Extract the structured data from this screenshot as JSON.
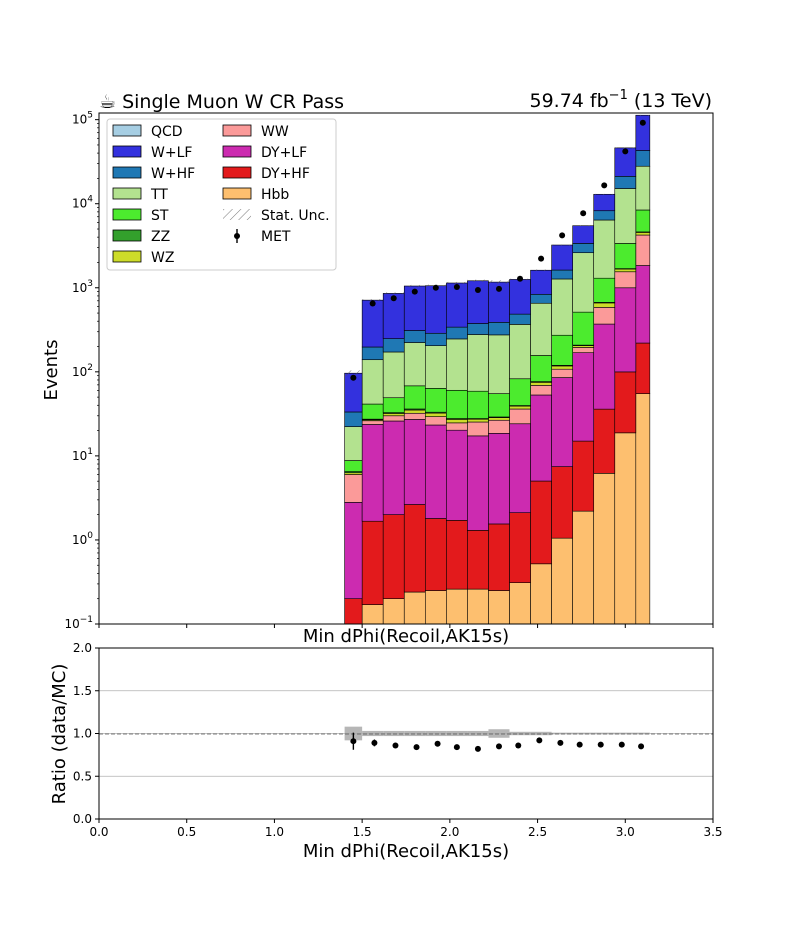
{
  "title_left": "☕ Single Muon W CR Pass",
  "title_right_main": "59.74 fb",
  "title_right_exp": "−1",
  "title_right_tail": " (13 TeV)",
  "chart_data": [
    {
      "type": "bar",
      "stacked": true,
      "log_scale": true,
      "ylabel": "Events",
      "xlabel": "Min dPhi(Recoil,AK15s)",
      "ylim": [
        0.1,
        120000
      ],
      "xlim": [
        1.44,
        3.14
      ],
      "bin_edges": [
        1.4,
        1.5,
        1.62,
        1.74,
        1.86,
        1.98,
        2.1,
        2.22,
        2.34,
        2.46,
        2.58,
        2.7,
        2.82,
        2.94,
        3.06,
        3.14
      ],
      "y_tick_labels": [
        {
          "base": "10",
          "exp": "5"
        },
        {
          "base": "10",
          "exp": "4"
        },
        {
          "base": "10",
          "exp": "3"
        },
        {
          "base": "10",
          "exp": "2"
        },
        {
          "base": "10",
          "exp": "1"
        },
        {
          "base": "10",
          "exp": "0"
        },
        {
          "base": "10",
          "exp": "−1"
        }
      ],
      "series": [
        {
          "name": "Hbb",
          "color": "#fdbf6f",
          "values": [
            0.1,
            0.17,
            0.2,
            0.24,
            0.25,
            0.26,
            0.26,
            0.25,
            0.31,
            0.52,
            1.05,
            2.2,
            6.2,
            18.8,
            55
          ]
        },
        {
          "name": "DY+HF",
          "color": "#e31a1c",
          "values": [
            0.1,
            1.5,
            1.8,
            2.4,
            1.55,
            1.45,
            1.04,
            1.3,
            1.8,
            4.5,
            6.4,
            12.8,
            29.8,
            81,
            165
          ]
        },
        {
          "name": "DY+LF",
          "color": "#cc2bb0",
          "values": [
            2.6,
            22,
            24,
            24.5,
            21.5,
            18.5,
            16,
            17,
            22,
            48,
            78,
            154,
            334,
            900,
            1620
          ]
        },
        {
          "name": "WW",
          "color": "#fb9a99",
          "values": [
            3.2,
            2.5,
            4,
            5,
            6,
            4.5,
            8,
            8,
            12,
            16,
            22,
            26,
            215,
            550,
            2400
          ]
        },
        {
          "name": "WZ",
          "color": "#cddc29",
          "values": [
            0.3,
            0.7,
            2,
            3,
            3,
            2.5,
            2,
            2,
            3,
            6,
            10,
            10,
            75,
            120,
            320
          ]
        },
        {
          "name": "ZZ",
          "color": "#33a02c",
          "values": [
            0.2,
            0.5,
            0.7,
            1,
            0.8,
            0.6,
            0.5,
            0.5,
            0.6,
            1.5,
            2,
            3,
            10,
            20,
            60
          ]
        },
        {
          "name": "ST",
          "color": "#4ceb2e",
          "values": [
            2.3,
            14,
            16.5,
            32,
            30.5,
            32.5,
            31,
            26,
            43,
            80,
            153,
            305,
            630,
            1680,
            3800
          ]
        },
        {
          "name": "TT",
          "color": "#b3e28f",
          "values": [
            13.5,
            98,
            123,
            155,
            141,
            186,
            219,
            220,
            284,
            498,
            1000,
            2100,
            5100,
            11800,
            19500
          ]
        },
        {
          "name": "W+HF",
          "color": "#1f78b4",
          "values": [
            11,
            58,
            76,
            87,
            83,
            94,
            98,
            113,
            119,
            182,
            352,
            760,
            1850,
            6000,
            15000
          ]
        },
        {
          "name": "W+LF",
          "color": "#3331de",
          "values": [
            63,
            515,
            609,
            739,
            770,
            799,
            836,
            780,
            771,
            781,
            1600,
            2100,
            4700,
            25000,
            70000
          ]
        },
        {
          "name": "QCD",
          "color": "#a6cee3",
          "values": [
            0.01,
            0.01,
            0.01,
            0.01,
            0.01,
            0.01,
            0.01,
            0.01,
            0.01,
            0.01,
            0.01,
            0.01,
            0.01,
            0.01,
            0.01
          ]
        }
      ],
      "data_points": {
        "name": "MET",
        "x": [
          1.45,
          1.56,
          1.68,
          1.8,
          1.92,
          2.04,
          2.16,
          2.28,
          2.4,
          2.52,
          2.64,
          2.76,
          2.88,
          3.0,
          3.1
        ],
        "y": [
          85,
          650,
          750,
          900,
          1000,
          1020,
          940,
          970,
          1280,
          2220,
          4200,
          7700,
          16500,
          42000,
          92000
        ]
      },
      "stat_unc_label": "Stat. Unc.",
      "legend": {
        "col1": [
          "QCD",
          "W+LF",
          "W+HF",
          "TT",
          "ST",
          "ZZ",
          "WZ"
        ],
        "col2": [
          "WW",
          "DY+LF",
          "DY+HF",
          "Hbb",
          "Stat. Unc.",
          "MET"
        ],
        "placement": "top-left"
      }
    },
    {
      "type": "scatter",
      "title": "Min dPhi(Recoil,AK15s)",
      "xlabel": "Min dPhi(Recoil,AK15s)",
      "ylabel": "Ratio (data/MC)",
      "xlim": [
        0.0,
        3.5
      ],
      "ylim": [
        0.0,
        2.0
      ],
      "x_ticks": [
        "0.0",
        "0.5",
        "1.0",
        "1.5",
        "2.0",
        "2.5",
        "3.0",
        "3.5"
      ],
      "y_ticks": [
        "0.0",
        "0.5",
        "1.0",
        "1.5",
        "2.0"
      ],
      "grid": true,
      "reference_line": 1.0,
      "x": [
        1.45,
        1.57,
        1.69,
        1.81,
        1.93,
        2.04,
        2.16,
        2.28,
        2.39,
        2.51,
        2.63,
        2.74,
        2.86,
        2.98,
        3.09
      ],
      "y": [
        0.91,
        0.89,
        0.86,
        0.84,
        0.88,
        0.84,
        0.82,
        0.85,
        0.86,
        0.92,
        0.89,
        0.87,
        0.87,
        0.87,
        0.85
      ],
      "y_err": [
        0.1,
        0.04,
        0.03,
        0.03,
        0.03,
        0.03,
        0.03,
        0.03,
        0.03,
        0.02,
        0.02,
        0.02,
        0.01,
        0.01,
        0.01
      ],
      "mc_unc": [
        0.08,
        0.03,
        0.03,
        0.03,
        0.03,
        0.03,
        0.03,
        0.05,
        0.02,
        0.02,
        0.01,
        0.01,
        0.01,
        0.01,
        0.01
      ]
    }
  ]
}
